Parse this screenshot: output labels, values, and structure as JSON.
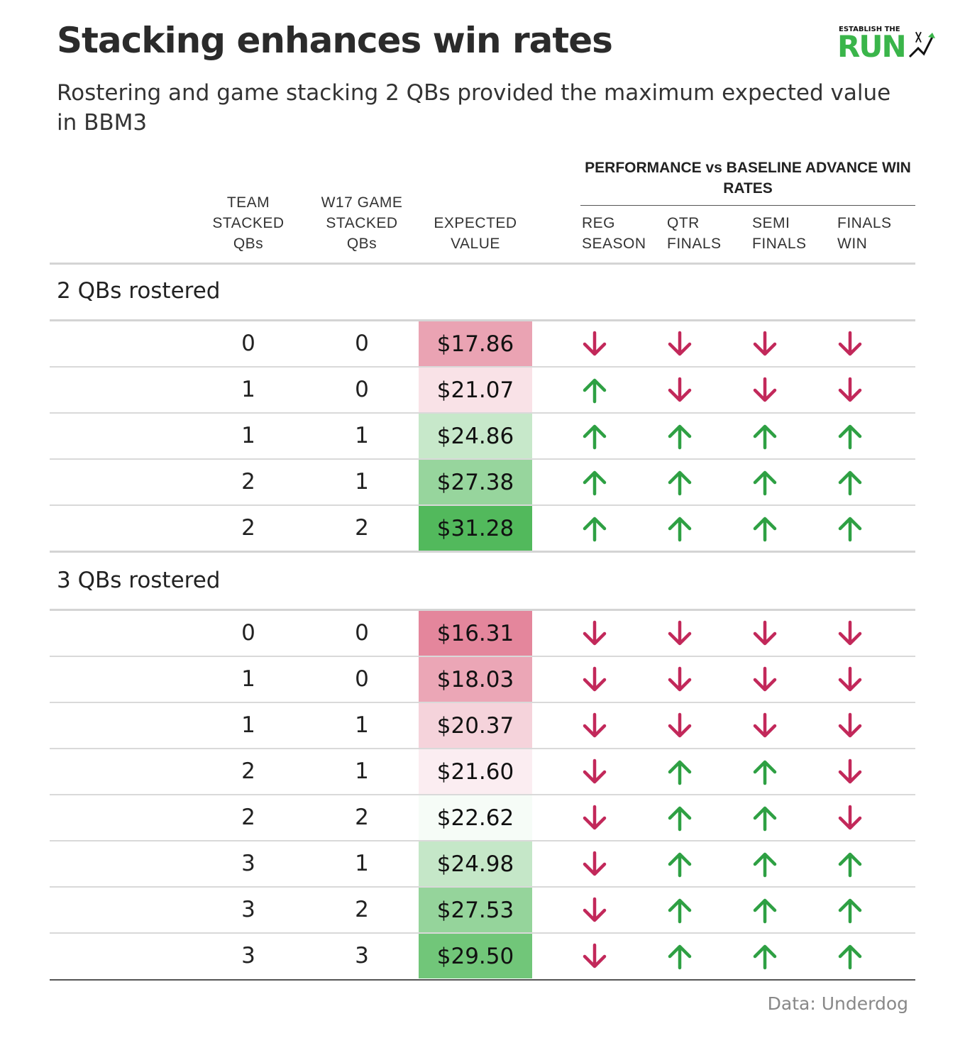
{
  "title": "Stacking enhances win rates",
  "subtitle": "Rostering and game stacking 2 QBs provided the maximum expected value in BBM3",
  "logo": {
    "top_text": "ESTABLISH THE",
    "main_text": "RUN"
  },
  "source": "Data: Underdog",
  "colors": {
    "up": "#2ea043",
    "down": "#c2285a"
  },
  "chart_data": {
    "type": "table",
    "group_header": "PERFORMANCE vs BASELINE ADVANCE WIN RATES",
    "columns": [
      {
        "key": "team",
        "label_lines": [
          "TEAM",
          "STACKED",
          "QBs"
        ]
      },
      {
        "key": "game",
        "label_lines": [
          "W17 GAME",
          "STACKED",
          "QBs"
        ]
      },
      {
        "key": "ev",
        "label_lines": [
          "EXPECTED",
          "VALUE"
        ]
      },
      {
        "key": "reg",
        "label_lines": [
          "REG",
          "SEASON"
        ]
      },
      {
        "key": "qtr",
        "label_lines": [
          "QTR",
          "FINALS"
        ]
      },
      {
        "key": "semi",
        "label_lines": [
          "SEMI",
          "FINALS"
        ]
      },
      {
        "key": "fin",
        "label_lines": [
          "FINALS",
          "WIN"
        ]
      }
    ],
    "sections": [
      {
        "label": "2 QBs rostered",
        "rows": [
          {
            "team": "0",
            "game": "0",
            "ev": "$17.86",
            "ev_value": 17.86,
            "trends": [
              "down",
              "down",
              "down",
              "down"
            ]
          },
          {
            "team": "1",
            "game": "0",
            "ev": "$21.07",
            "ev_value": 21.07,
            "trends": [
              "up",
              "down",
              "down",
              "down"
            ]
          },
          {
            "team": "1",
            "game": "1",
            "ev": "$24.86",
            "ev_value": 24.86,
            "trends": [
              "up",
              "up",
              "up",
              "up"
            ]
          },
          {
            "team": "2",
            "game": "1",
            "ev": "$27.38",
            "ev_value": 27.38,
            "trends": [
              "up",
              "up",
              "up",
              "up"
            ]
          },
          {
            "team": "2",
            "game": "2",
            "ev": "$31.28",
            "ev_value": 31.28,
            "trends": [
              "up",
              "up",
              "up",
              "up"
            ]
          }
        ]
      },
      {
        "label": "3 QBs rostered",
        "rows": [
          {
            "team": "0",
            "game": "0",
            "ev": "$16.31",
            "ev_value": 16.31,
            "trends": [
              "down",
              "down",
              "down",
              "down"
            ]
          },
          {
            "team": "1",
            "game": "0",
            "ev": "$18.03",
            "ev_value": 18.03,
            "trends": [
              "down",
              "down",
              "down",
              "down"
            ]
          },
          {
            "team": "1",
            "game": "1",
            "ev": "$20.37",
            "ev_value": 20.37,
            "trends": [
              "down",
              "down",
              "down",
              "down"
            ]
          },
          {
            "team": "2",
            "game": "1",
            "ev": "$21.60",
            "ev_value": 21.6,
            "trends": [
              "down",
              "up",
              "up",
              "down"
            ]
          },
          {
            "team": "2",
            "game": "2",
            "ev": "$22.62",
            "ev_value": 22.62,
            "trends": [
              "down",
              "up",
              "up",
              "down"
            ]
          },
          {
            "team": "3",
            "game": "1",
            "ev": "$24.98",
            "ev_value": 24.98,
            "trends": [
              "down",
              "up",
              "up",
              "up"
            ]
          },
          {
            "team": "3",
            "game": "2",
            "ev": "$27.53",
            "ev_value": 27.53,
            "trends": [
              "down",
              "up",
              "up",
              "up"
            ]
          },
          {
            "team": "3",
            "game": "3",
            "ev": "$29.50",
            "ev_value": 29.5,
            "trends": [
              "down",
              "up",
              "up",
              "up"
            ]
          }
        ]
      }
    ]
  }
}
